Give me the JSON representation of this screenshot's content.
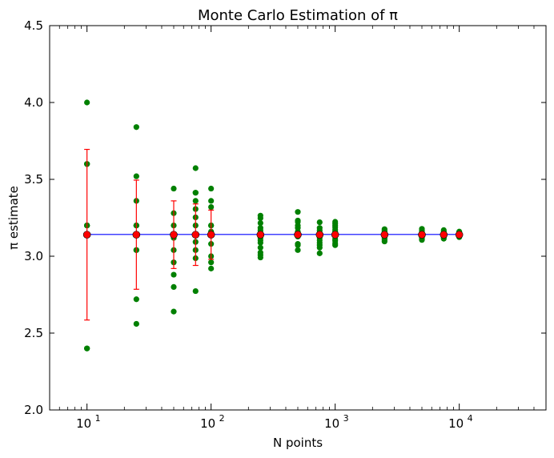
{
  "chart_data": {
    "type": "scatter",
    "title": "Monte Carlo Estimation of π",
    "xlabel": "N points",
    "ylabel": "π estimate",
    "xscale": "log",
    "xlim": [
      5,
      50000
    ],
    "ylim": [
      2.0,
      4.5
    ],
    "yticks": [
      "2.0",
      "2.5",
      "3.0",
      "3.5",
      "4.0",
      "4.5"
    ],
    "xticks": [
      {
        "value": 10,
        "base": "10",
        "exp": "1"
      },
      {
        "value": 100,
        "base": "10",
        "exp": "2"
      },
      {
        "value": 1000,
        "base": "10",
        "exp": "3"
      },
      {
        "value": 10000,
        "base": "10",
        "exp": "4"
      }
    ],
    "grid": false,
    "reference_line": {
      "y": 3.14159,
      "x_range": [
        10,
        10000
      ],
      "color": "#0000ff"
    },
    "colors": {
      "trials": "#008000",
      "mean": "#ff0000",
      "errorbar": "#ff0000",
      "reference": "#0000ff"
    },
    "trials": [
      {
        "n": 10,
        "values": [
          4.0,
          3.6,
          3.6,
          3.2,
          3.2,
          3.2,
          2.4,
          2.4,
          3.2,
          3.6
        ]
      },
      {
        "n": 25,
        "values": [
          3.84,
          3.52,
          3.36,
          3.2,
          3.2,
          3.04,
          3.04,
          2.72,
          2.56,
          3.2
        ]
      },
      {
        "n": 50,
        "values": [
          3.44,
          3.28,
          3.2,
          3.12,
          3.12,
          3.04,
          2.96,
          2.88,
          2.8,
          2.64
        ]
      },
      {
        "n": 75,
        "values": [
          3.573,
          3.413,
          3.413,
          3.36,
          3.307,
          3.253,
          3.2,
          3.093,
          3.04,
          2.987,
          2.773
        ]
      },
      {
        "n": 100,
        "values": [
          3.44,
          3.36,
          3.32,
          3.2,
          3.16,
          3.08,
          3.0,
          2.96,
          2.92,
          3.2
        ]
      },
      {
        "n": 250,
        "values": [
          3.264,
          3.248,
          3.216,
          3.184,
          3.168,
          3.152,
          3.12,
          3.104,
          3.088,
          3.056,
          3.024,
          3.008,
          2.992
        ]
      },
      {
        "n": 500,
        "values": [
          3.288,
          3.232,
          3.224,
          3.2,
          3.184,
          3.16,
          3.144,
          3.128,
          3.08,
          3.072,
          3.04
        ]
      },
      {
        "n": 750,
        "values": [
          3.221,
          3.184,
          3.168,
          3.152,
          3.141,
          3.12,
          3.104,
          3.088,
          3.072,
          3.056,
          3.019
        ]
      },
      {
        "n": 1000,
        "values": [
          3.224,
          3.212,
          3.2,
          3.188,
          3.172,
          3.16,
          3.136,
          3.112,
          3.1,
          3.084,
          3.072
        ]
      },
      {
        "n": 2500,
        "values": [
          3.176,
          3.168,
          3.16,
          3.152,
          3.144,
          3.136,
          3.128,
          3.12,
          3.112,
          3.104,
          3.096
        ]
      },
      {
        "n": 5000,
        "values": [
          3.178,
          3.17,
          3.162,
          3.154,
          3.146,
          3.138,
          3.13,
          3.122,
          3.114,
          3.106
        ]
      },
      {
        "n": 7500,
        "values": [
          3.17,
          3.162,
          3.154,
          3.146,
          3.138,
          3.13,
          3.122,
          3.114
        ]
      },
      {
        "n": 10000,
        "values": [
          3.16,
          3.154,
          3.148,
          3.142,
          3.136,
          3.13,
          3.124
        ]
      }
    ],
    "means": [
      {
        "n": 10,
        "mean": 3.14,
        "std": 0.555
      },
      {
        "n": 25,
        "mean": 3.14,
        "std": 0.355
      },
      {
        "n": 50,
        "mean": 3.14,
        "std": 0.22
      },
      {
        "n": 75,
        "mean": 3.14,
        "std": 0.2
      },
      {
        "n": 100,
        "mean": 3.14,
        "std": 0.16
      },
      {
        "n": 250,
        "mean": 3.14,
        "std": 0.0
      },
      {
        "n": 500,
        "mean": 3.14,
        "std": 0.0
      },
      {
        "n": 750,
        "mean": 3.14,
        "std": 0.0
      },
      {
        "n": 1000,
        "mean": 3.14,
        "std": 0.0
      },
      {
        "n": 2500,
        "mean": 3.14,
        "std": 0.0
      },
      {
        "n": 5000,
        "mean": 3.14,
        "std": 0.0
      },
      {
        "n": 7500,
        "mean": 3.14,
        "std": 0.0
      },
      {
        "n": 10000,
        "mean": 3.14,
        "std": 0.0
      }
    ]
  }
}
